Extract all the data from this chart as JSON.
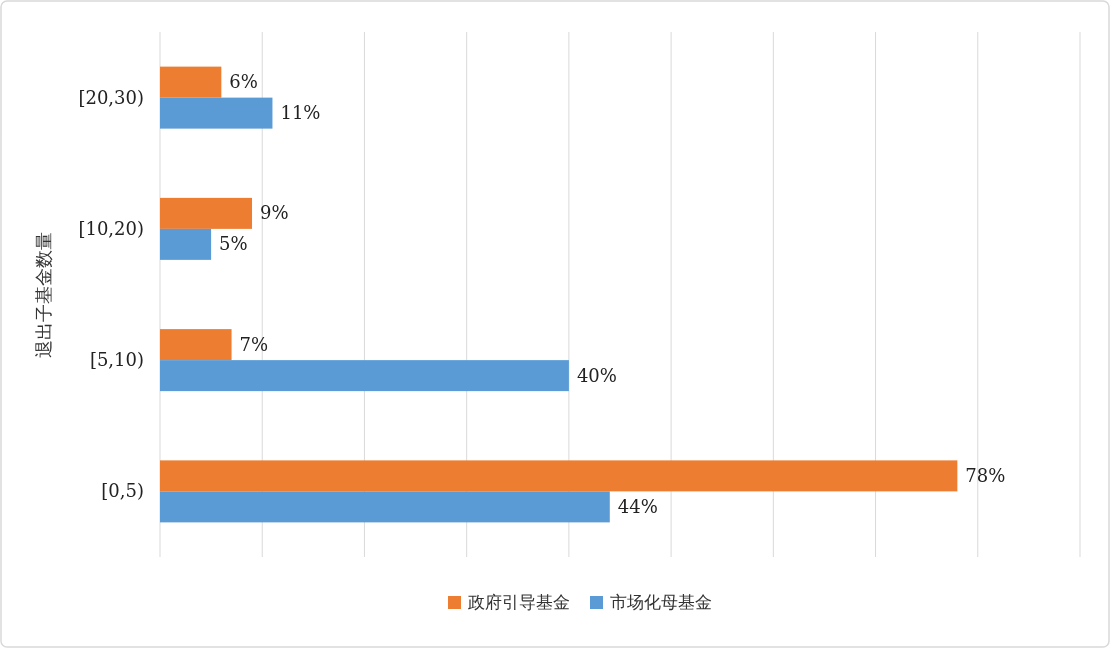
{
  "chart_data": {
    "type": "bar",
    "orientation": "horizontal",
    "ylabel": "退出子基金数量",
    "categories": [
      "[20,30)",
      "[10,20)",
      "[5,10)",
      "[0,5)"
    ],
    "series": [
      {
        "name": "政府引导基金",
        "color": "#ed7d31",
        "values": [
          6,
          9,
          7,
          78
        ],
        "value_labels": [
          "6%",
          "9%",
          "7%",
          "78%"
        ]
      },
      {
        "name": "市场化母基金",
        "color": "#5b9bd5",
        "values": [
          11,
          5,
          40,
          44
        ],
        "value_labels": [
          "11%",
          "5%",
          "40%",
          "44%"
        ]
      }
    ],
    "grid": "x",
    "legend": "bottom",
    "tick_labels": "y"
  }
}
